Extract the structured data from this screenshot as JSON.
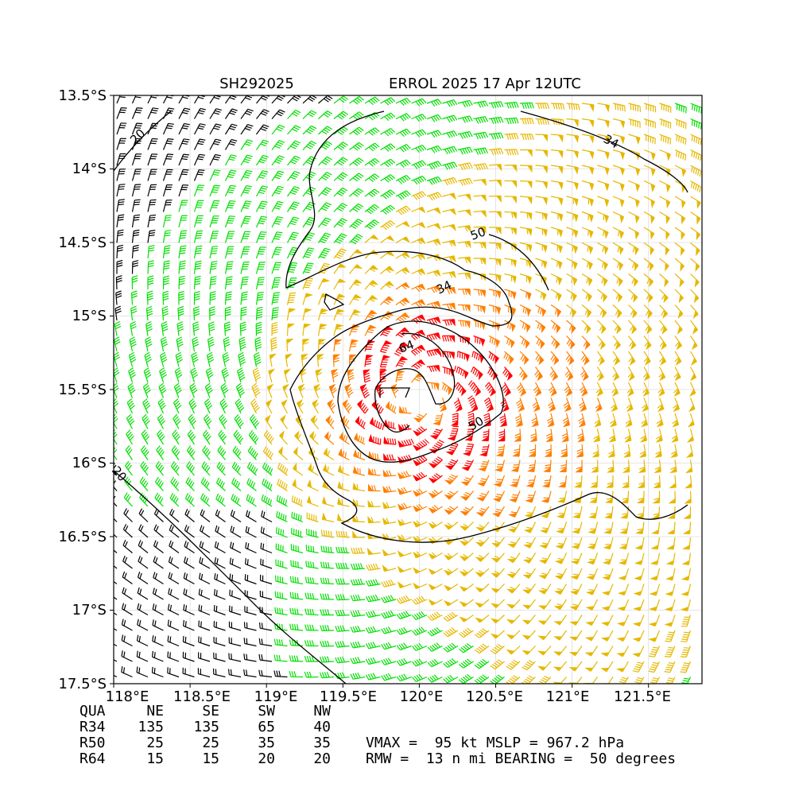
{
  "title": {
    "storm_id": "SH292025",
    "headline": "ERROL 2025 17 Apr 12UTC"
  },
  "axes": {
    "lon_ticks": [
      "118°E",
      "118.5°E",
      "119°E",
      "119.5°E",
      "120°E",
      "120.5°E",
      "121°E",
      "121.5°E"
    ],
    "lat_ticks": [
      "13.5°S",
      "14°S",
      "14.5°S",
      "15°S",
      "15.5°S",
      "16°S",
      "16.5°S",
      "17°S",
      "17.5°S"
    ],
    "lon_range": [
      118.0,
      121.85
    ],
    "lat_range": [
      -17.5,
      -13.5
    ],
    "grid": true
  },
  "storm": {
    "center_lon": 120.0,
    "center_lat": -15.55,
    "vmax_kt": 95,
    "mslp_hpa": 967.2,
    "rmw_nmi": 13,
    "bearing_deg": 50
  },
  "contour_labels": [
    "20",
    "34",
    "34",
    "50",
    "50",
    "64",
    "20"
  ],
  "wind_colors": {
    "below_34": "#000000",
    "r34": "#00e000",
    "r50": "#e6b800",
    "r64": "#ff7f00",
    "above_64": "#ff0000"
  },
  "radii_table": {
    "header": [
      "QUA",
      "NE",
      "SE",
      "SW",
      "NW"
    ],
    "rows": [
      [
        "R34",
        "135",
        "135",
        "65",
        "40"
      ],
      [
        "R50",
        "25",
        "25",
        "35",
        "35"
      ],
      [
        "R64",
        "15",
        "15",
        "20",
        "20"
      ]
    ]
  },
  "summary": {
    "line1": "VMAX =  95 kt MSLP = 967.2 hPa",
    "line2": "RMW =  13 n mi BEARING =  50 degrees"
  }
}
